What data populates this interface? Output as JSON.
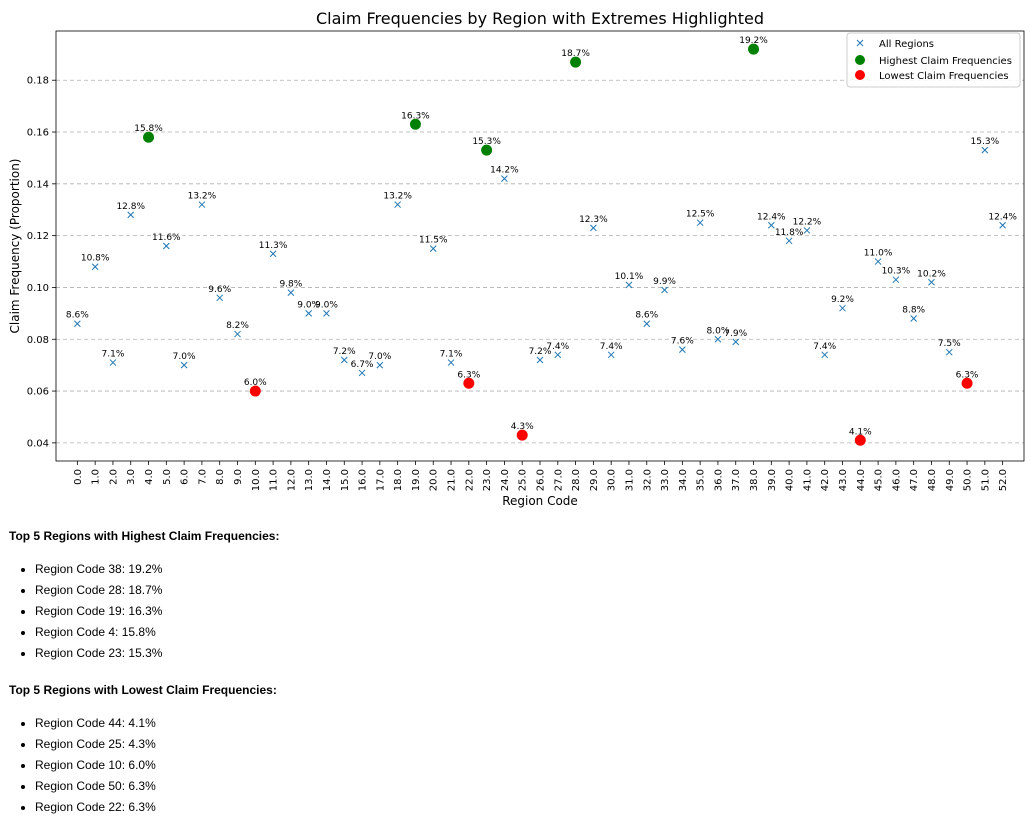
{
  "chart_data": {
    "type": "scatter",
    "title": "Claim Frequencies by Region with Extremes Highlighted",
    "xlabel": "Region Code",
    "ylabel": "Claim Frequency (Proportion)",
    "ylim": [
      0.033,
      0.199
    ],
    "xlim": [
      -1.2,
      53.2
    ],
    "yticks": [
      0.04,
      0.06,
      0.08,
      0.1,
      0.12,
      0.14,
      0.16,
      0.18
    ],
    "ytick_labels": [
      "0.04",
      "0.06",
      "0.08",
      "0.10",
      "0.12",
      "0.14",
      "0.16",
      "0.18"
    ],
    "xtick_labels": [
      "0.0",
      "1.0",
      "2.0",
      "3.0",
      "4.0",
      "5.0",
      "6.0",
      "7.0",
      "8.0",
      "9.0",
      "10.0",
      "11.0",
      "12.0",
      "13.0",
      "14.0",
      "15.0",
      "16.0",
      "17.0",
      "18.0",
      "19.0",
      "20.0",
      "21.0",
      "22.0",
      "23.0",
      "24.0",
      "25.0",
      "26.0",
      "27.0",
      "28.0",
      "29.0",
      "30.0",
      "31.0",
      "32.0",
      "33.0",
      "34.0",
      "35.0",
      "36.0",
      "37.0",
      "38.0",
      "39.0",
      "40.0",
      "41.0",
      "42.0",
      "43.0",
      "44.0",
      "45.0",
      "46.0",
      "47.0",
      "48.0",
      "49.0",
      "50.0",
      "51.0",
      "52.0"
    ],
    "grid": "horizontal dashed",
    "legend_position": "top-right",
    "series": [
      {
        "name": "All Regions",
        "marker": "x",
        "color": "#1f77b4",
        "x": [
          0,
          1,
          2,
          3,
          4,
          5,
          6,
          7,
          8,
          9,
          10,
          11,
          12,
          13,
          14,
          15,
          16,
          17,
          18,
          19,
          20,
          21,
          22,
          23,
          24,
          25,
          26,
          27,
          28,
          29,
          30,
          31,
          32,
          33,
          34,
          35,
          36,
          37,
          38,
          39,
          40,
          41,
          42,
          43,
          44,
          45,
          46,
          47,
          48,
          49,
          50,
          51,
          52
        ],
        "y": [
          0.086,
          0.108,
          0.071,
          0.128,
          0.158,
          0.116,
          0.07,
          0.132,
          0.096,
          0.082,
          0.06,
          0.113,
          0.098,
          0.09,
          0.09,
          0.072,
          0.067,
          0.07,
          0.132,
          0.163,
          0.115,
          0.071,
          0.063,
          0.153,
          0.142,
          0.043,
          0.072,
          0.074,
          0.187,
          0.123,
          0.074,
          0.101,
          0.086,
          0.099,
          0.076,
          0.125,
          0.08,
          0.079,
          0.192,
          0.124,
          0.118,
          0.122,
          0.074,
          0.092,
          0.041,
          0.11,
          0.103,
          0.088,
          0.102,
          0.075,
          0.063,
          0.153,
          0.124
        ],
        "labels": [
          "8.6%",
          "10.8%",
          "7.1%",
          "12.8%",
          "15.8%",
          "11.6%",
          "7.0%",
          "13.2%",
          "9.6%",
          "8.2%",
          "6.0%",
          "11.3%",
          "9.8%",
          "9.0%",
          "9.0%",
          "7.2%",
          "6.7%",
          "7.0%",
          "13.2%",
          "16.3%",
          "11.5%",
          "7.1%",
          "6.3%",
          "15.3%",
          "14.2%",
          "4.3%",
          "7.2%",
          "7.4%",
          "18.7%",
          "12.3%",
          "7.4%",
          "10.1%",
          "8.6%",
          "9.9%",
          "7.6%",
          "12.5%",
          "8.0%",
          "7.9%",
          "19.2%",
          "12.4%",
          "11.8%",
          "12.2%",
          "7.4%",
          "9.2%",
          "4.1%",
          "11.0%",
          "10.3%",
          "8.8%",
          "10.2%",
          "7.5%",
          "6.3%",
          "15.3%",
          "12.4%"
        ]
      },
      {
        "name": "Highest Claim Frequencies",
        "marker": "circle",
        "color": "#008000",
        "x": [
          38,
          28,
          19,
          4,
          23
        ],
        "y": [
          0.192,
          0.187,
          0.163,
          0.158,
          0.153
        ]
      },
      {
        "name": "Lowest Claim Frequencies",
        "marker": "circle",
        "color": "#ff0000",
        "x": [
          44,
          25,
          10,
          50,
          22
        ],
        "y": [
          0.041,
          0.043,
          0.06,
          0.063,
          0.063
        ]
      }
    ]
  },
  "notes": {
    "top_title": "Top 5 Regions with Highest Claim Frequencies:",
    "top_items": [
      "Region Code 38: 19.2%",
      "Region Code 28: 18.7%",
      "Region Code 19: 16.3%",
      "Region Code 4: 15.8%",
      "Region Code 23: 15.3%"
    ],
    "low_title": "Top 5 Regions with Lowest Claim Frequencies:",
    "low_items": [
      "Region Code 44: 4.1%",
      "Region Code 25: 4.3%",
      "Region Code 10: 6.0%",
      "Region Code 50: 6.3%",
      "Region Code 22: 6.3%"
    ]
  }
}
